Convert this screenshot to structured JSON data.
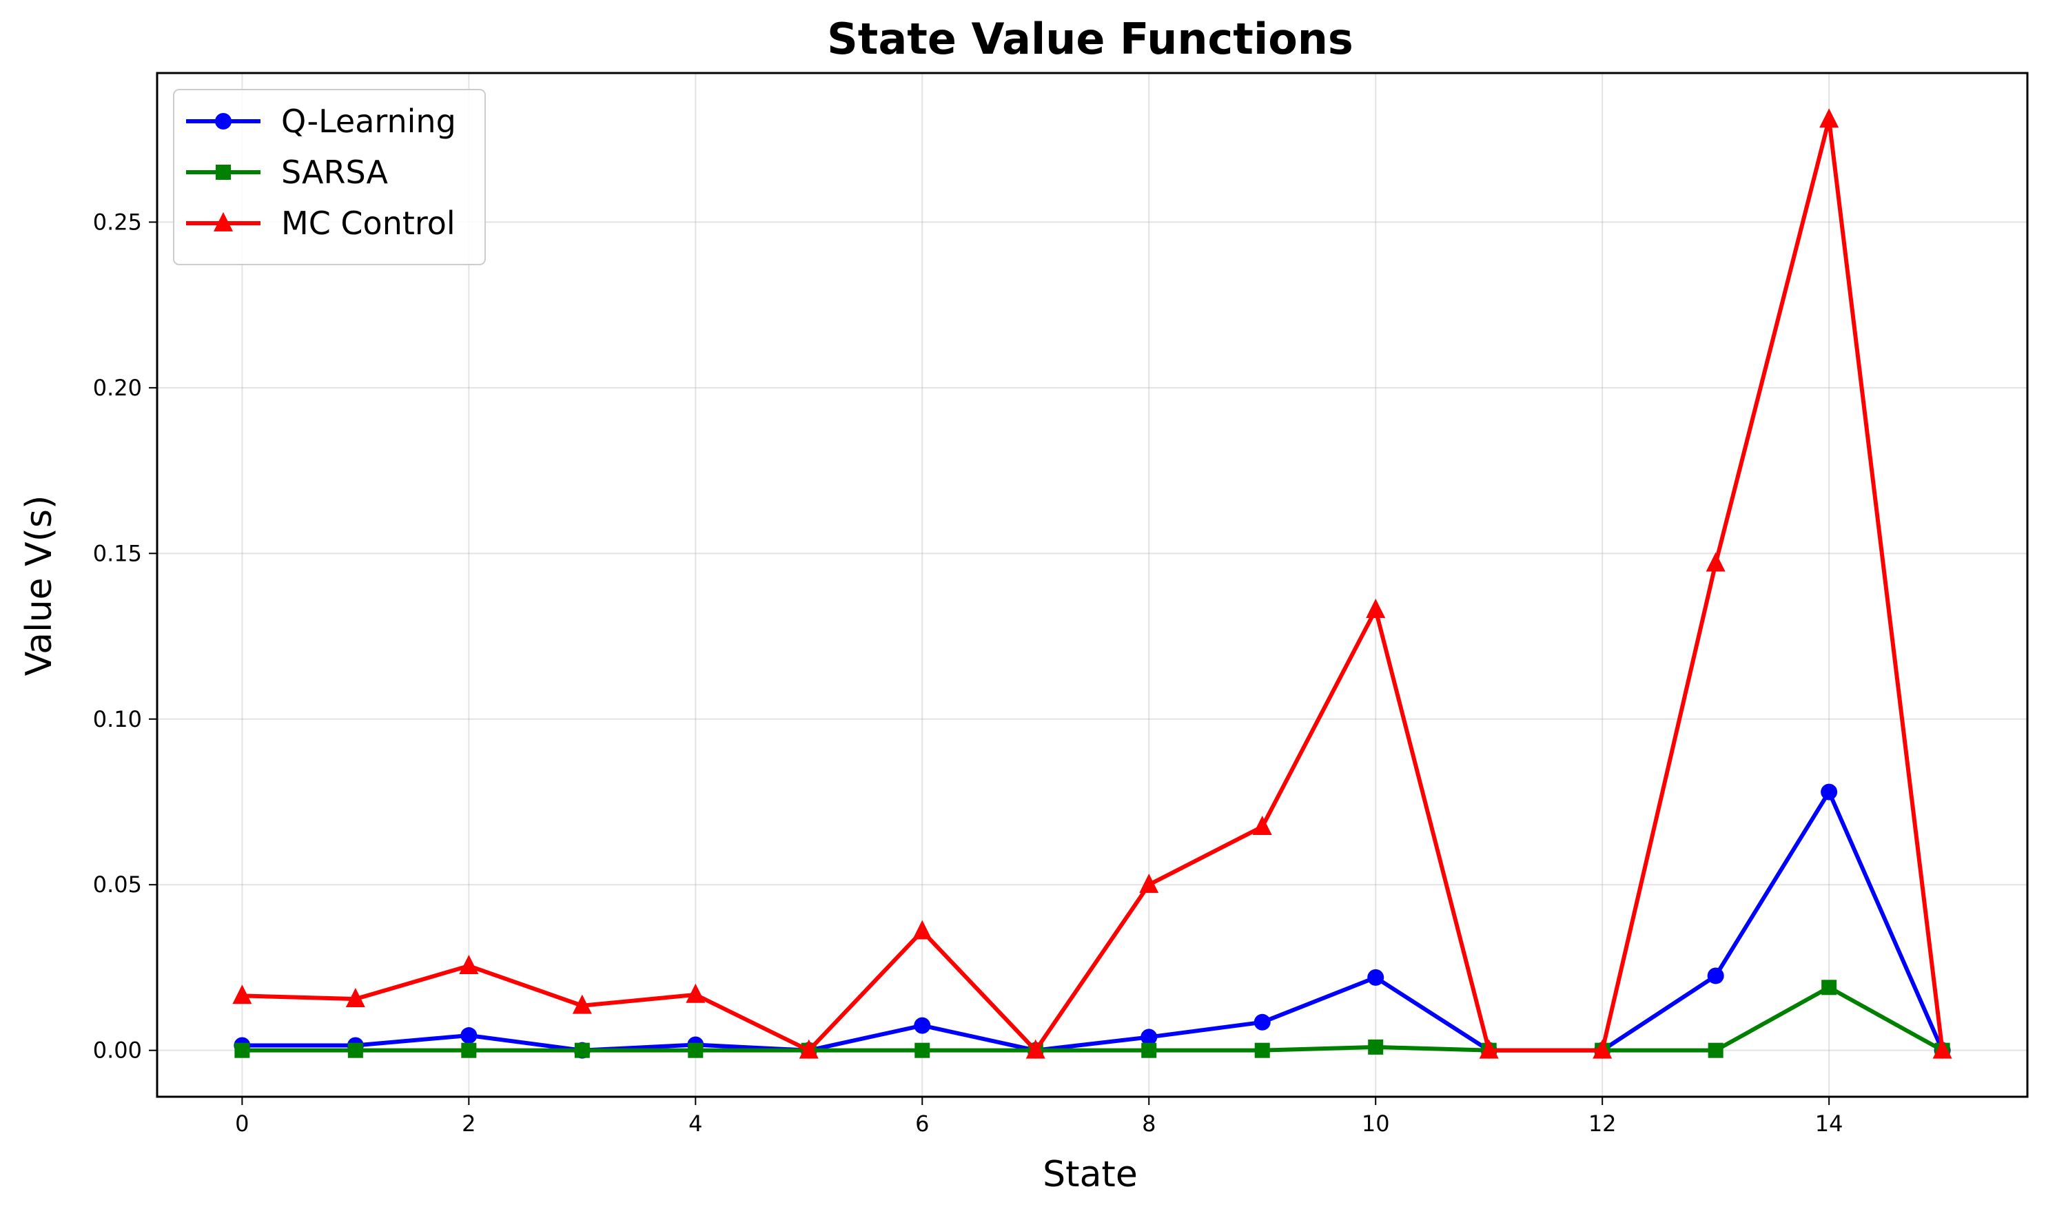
{
  "chart_data": {
    "type": "line",
    "title": "State Value Functions",
    "xlabel": "State",
    "ylabel": "Value V(s)",
    "xlim": [
      -0.75,
      15.75
    ],
    "ylim": [
      -0.014,
      0.295
    ],
    "xticks": [
      0,
      2,
      4,
      6,
      8,
      10,
      12,
      14
    ],
    "xtick_labels": [
      "0",
      "2",
      "4",
      "6",
      "8",
      "10",
      "12",
      "14"
    ],
    "yticks": [
      0.0,
      0.05,
      0.1,
      0.15,
      0.2,
      0.25
    ],
    "ytick_labels": [
      "0.00",
      "0.05",
      "0.10",
      "0.15",
      "0.20",
      "0.25"
    ],
    "grid": true,
    "legend_position": "top-left",
    "x": [
      0,
      1,
      2,
      3,
      4,
      5,
      6,
      7,
      8,
      9,
      10,
      11,
      12,
      13,
      14,
      15
    ],
    "series": [
      {
        "name": "Q-Learning",
        "color": "#0000ff",
        "marker": "circle",
        "values": [
          0.0015,
          0.0015,
          0.0045,
          0.0,
          0.0017,
          0.0,
          0.0075,
          0.0,
          0.004,
          0.0085,
          0.022,
          0.0,
          0.0,
          0.0225,
          0.078,
          0.0
        ]
      },
      {
        "name": "SARSA",
        "color": "#008000",
        "marker": "square",
        "values": [
          0.0,
          0.0,
          0.0,
          0.0,
          0.0,
          0.0,
          0.0,
          0.0,
          0.0,
          0.0,
          0.001,
          0.0,
          0.0,
          0.0,
          0.019,
          0.0
        ]
      },
      {
        "name": "MC Control",
        "color": "#ff0000",
        "marker": "triangle",
        "values": [
          0.0165,
          0.0155,
          0.0255,
          0.0135,
          0.0168,
          0.0,
          0.036,
          0.0,
          0.05,
          0.0675,
          0.133,
          0.0,
          0.0,
          0.147,
          0.281,
          0.0
        ]
      }
    ]
  }
}
